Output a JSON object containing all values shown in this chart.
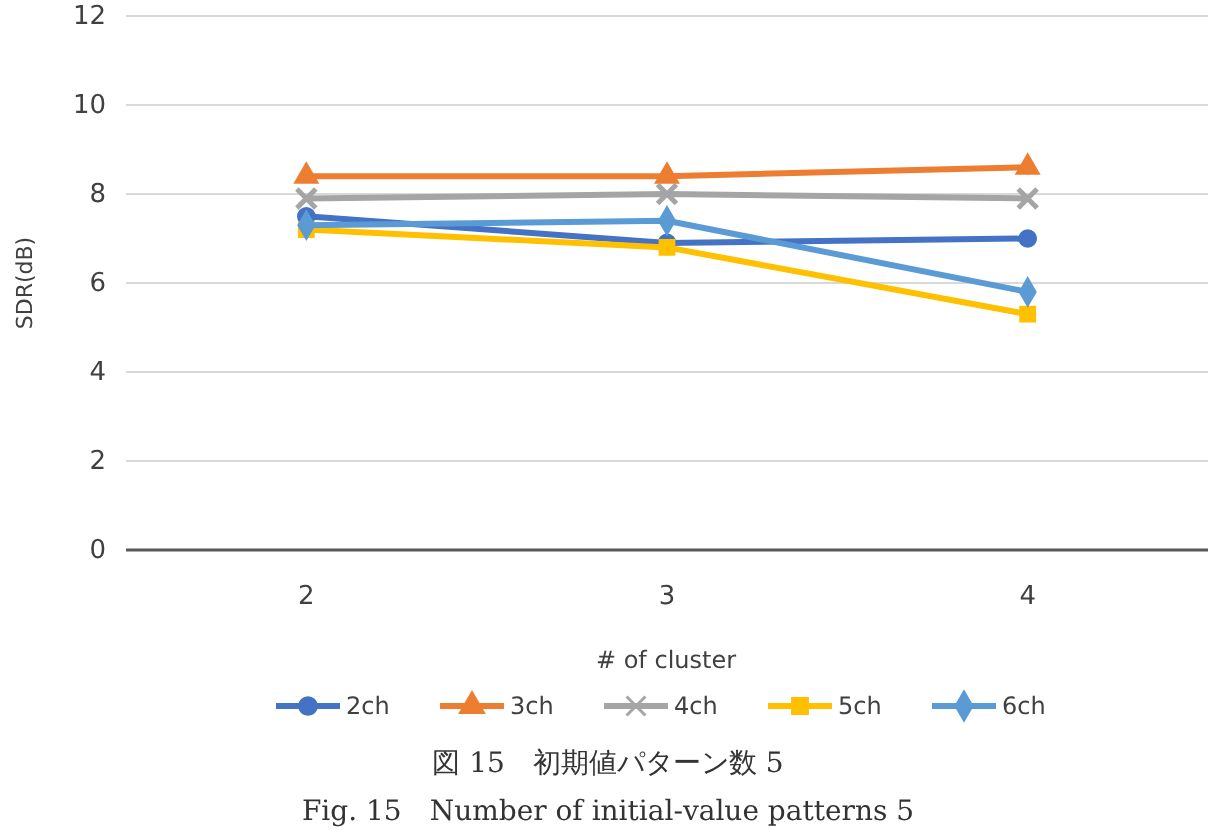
{
  "chart_data": {
    "type": "line",
    "xlabel": "# of cluster",
    "ylabel": "SDR(dB)",
    "categories": [
      "2",
      "3",
      "4"
    ],
    "series": [
      {
        "name": "2ch",
        "color": "#4472c4",
        "marker": "circle",
        "values": [
          7.5,
          6.9,
          7.0
        ]
      },
      {
        "name": "3ch",
        "color": "#ed7d31",
        "marker": "triangle",
        "values": [
          8.4,
          8.4,
          8.6
        ]
      },
      {
        "name": "4ch",
        "color": "#a5a5a5",
        "marker": "cross",
        "values": [
          7.9,
          8.0,
          7.9
        ]
      },
      {
        "name": "5ch",
        "color": "#ffc000",
        "marker": "square",
        "values": [
          7.2,
          6.8,
          5.3
        ]
      },
      {
        "name": "6ch",
        "color": "#5b9bd5",
        "marker": "diamond",
        "values": [
          7.3,
          7.4,
          5.8
        ]
      }
    ],
    "ylim": [
      0,
      12
    ],
    "yticks": [
      0,
      2,
      4,
      6,
      8,
      10,
      12
    ],
    "grid": "y",
    "legend": "bottom",
    "annotations": [
      "図 15　初期値パターン数 5",
      "Fig. 15　Number of initial-value patterns 5"
    ]
  }
}
